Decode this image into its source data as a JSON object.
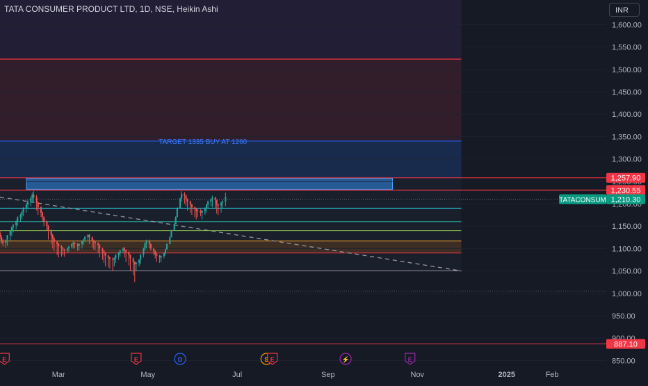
{
  "header": {
    "title": "TATA CONSUMER PRODUCT LTD, 1D, NSE, Heikin Ashi"
  },
  "currency_button": {
    "label": "INR"
  },
  "colors": {
    "background": "#161a25",
    "up_candle": "#26a69a",
    "down_candle": "#ef5350",
    "resistance_line": "#f23645",
    "target_zone": "#1e3a6e",
    "sell_zone": "#4a2030",
    "top_zone": "#2e2345",
    "axis_text": "#b2b5be",
    "current_price_badge": "#089981"
  },
  "chart_data": {
    "type": "candlestick",
    "title": "TATA CONSUMER PRODUCT LTD, 1D, NSE, Heikin Ashi",
    "y_axis": {
      "ylim": [
        835,
        1655
      ],
      "ticks": [
        "1,600.00",
        "1,550.00",
        "1,500.00",
        "1,450.00",
        "1,400.00",
        "1,350.00",
        "1,300.00",
        "1,250.00",
        "1,200.00",
        "1,150.00",
        "1,100.00",
        "1,050.00",
        "1,000.00",
        "950.00",
        "900.00",
        "850.00"
      ]
    },
    "x_axis": {
      "ticks": [
        "Mar",
        "May",
        "Jul",
        "Sep",
        "Nov",
        "2025",
        "Feb"
      ],
      "tick_dates": [
        "2024-03-01",
        "2024-05-01",
        "2024-07-01",
        "2024-09-01",
        "2024-11-01",
        "2025-01-01",
        "2025-02-01"
      ],
      "range": [
        "2024-01-21",
        "2025-03-10"
      ]
    },
    "price_labels": [
      {
        "label": "1,257.90",
        "value": 1257.9,
        "color": "#f23645"
      },
      {
        "label": "1,230.55",
        "value": 1230.55,
        "color": "#f23645"
      },
      {
        "label": "1,210.30",
        "value": 1210.3,
        "color": "#089981"
      },
      {
        "label": "887.10",
        "value": 887.1,
        "color": "#f23645"
      }
    ],
    "current_price": {
      "symbol": "TATACONSUM",
      "value": 1210.3,
      "label": "1,210.30"
    },
    "zones": [
      {
        "name": "top-zone",
        "from": 1525,
        "to": 1655,
        "start": "2024-01-21",
        "end": "2024-12-01",
        "color": "#2e2345"
      },
      {
        "name": "upper-red-zone",
        "from": 1342,
        "to": 1525,
        "start": "2024-01-21",
        "end": "2024-12-01",
        "color": "#4a2030"
      },
      {
        "name": "target-zone",
        "from": 1257.9,
        "to": 1342,
        "start": "2024-01-21",
        "end": "2024-12-01",
        "color": "#1e3a6e"
      },
      {
        "name": "mid-zone",
        "from": 1050,
        "to": 1257.9,
        "start": "2024-01-21",
        "end": "2024-12-01",
        "color": "#1f2533"
      },
      {
        "name": "buy-box",
        "from": 1232,
        "to": 1257,
        "start": "2024-02-08",
        "end": "2024-10-15",
        "color": "#2a6fb8"
      },
      {
        "name": "lower-orange-zone",
        "from": 1090,
        "to": 1117,
        "start": "2024-01-21",
        "end": "2024-12-01",
        "color": "#5a3a20"
      }
    ],
    "lines": [
      {
        "value": 1523,
        "color": "#f23645",
        "start": "2024-01-21",
        "end": "2024-12-01",
        "style": "solid"
      },
      {
        "value": 1340,
        "color": "#2962ff",
        "start": "2024-01-21",
        "end": "2024-12-01",
        "style": "solid",
        "label": "TARGET  1335 BUY AT 1260"
      },
      {
        "value": 1257.9,
        "color": "#f23645",
        "start": "2024-01-21",
        "end": "2025-03-10",
        "style": "solid"
      },
      {
        "value": 1230.55,
        "color": "#f23645",
        "start": "2024-01-21",
        "end": "2025-03-10",
        "style": "solid"
      },
      {
        "value": 1190,
        "color": "#26c6da",
        "start": "2024-01-21",
        "end": "2024-12-01",
        "style": "solid"
      },
      {
        "value": 1160,
        "color": "#26a69a",
        "start": "2024-01-21",
        "end": "2024-12-01",
        "style": "solid"
      },
      {
        "value": 1140,
        "color": "#8bc34a",
        "start": "2024-01-21",
        "end": "2024-12-01",
        "style": "solid"
      },
      {
        "value": 1117,
        "color": "#ffa726",
        "start": "2024-01-21",
        "end": "2024-12-01",
        "style": "solid"
      },
      {
        "value": 1090,
        "color": "#f23645",
        "start": "2024-01-21",
        "end": "2024-12-01",
        "style": "solid"
      },
      {
        "value": 1050,
        "color": "#9598a1",
        "start": "2024-01-21",
        "end": "2024-12-01",
        "style": "solid"
      },
      {
        "value": 887.1,
        "color": "#f23645",
        "start": "2024-01-21",
        "end": "2025-03-10",
        "style": "solid"
      }
    ],
    "trendline": {
      "start": [
        "2024-01-21",
        1215
      ],
      "end": [
        "2024-12-01",
        1050
      ],
      "color": "#9598a1",
      "style": "dashed"
    },
    "event_markers": [
      {
        "date": "2024-01-24",
        "label": "E",
        "color": "#f23645"
      },
      {
        "date": "2024-04-23",
        "label": "E",
        "color": "#f23645"
      },
      {
        "date": "2024-05-23",
        "label": "D",
        "color": "#2962ff"
      },
      {
        "date": "2024-07-21",
        "label": "S",
        "color": "#ff9800"
      },
      {
        "date": "2024-07-25",
        "label": "E",
        "color": "#f23645"
      },
      {
        "date": "2024-09-13",
        "label": "⚡",
        "color": "#9c27b0"
      },
      {
        "date": "2024-10-27",
        "label": "E",
        "color": "#9c27b0"
      }
    ],
    "candles": {
      "start_date": "2024-01-21",
      "interval_days": 1.4,
      "open": [
        1135,
        1125,
        1118,
        1112,
        1120,
        1130,
        1140,
        1148,
        1152,
        1160,
        1170,
        1175,
        1182,
        1190,
        1198,
        1205,
        1212,
        1220,
        1215,
        1202,
        1192,
        1180,
        1170,
        1160,
        1150,
        1140,
        1130,
        1122,
        1115,
        1110,
        1105,
        1100,
        1098,
        1096,
        1100,
        1104,
        1110,
        1113,
        1110,
        1106,
        1110,
        1116,
        1120,
        1126,
        1130,
        1125,
        1118,
        1115,
        1112,
        1108,
        1100,
        1094,
        1090,
        1084,
        1080,
        1077,
        1075,
        1078,
        1085,
        1090,
        1095,
        1100,
        1096,
        1092,
        1085,
        1078,
        1070,
        1065,
        1068,
        1075,
        1086,
        1100,
        1112,
        1118,
        1110,
        1100,
        1094,
        1088,
        1084,
        1080,
        1083,
        1090,
        1098,
        1110,
        1125,
        1140,
        1155,
        1170,
        1190,
        1212,
        1222,
        1218,
        1210,
        1205,
        1198,
        1192,
        1188,
        1184,
        1185,
        1180,
        1184,
        1190,
        1198,
        1205,
        1210,
        1214,
        1208,
        1198,
        1196,
        1202,
        1205
      ],
      "high": [
        1140,
        1130,
        1122,
        1120,
        1128,
        1138,
        1149,
        1155,
        1163,
        1172,
        1178,
        1185,
        1193,
        1202,
        1209,
        1216,
        1225,
        1228,
        1220,
        1205,
        1195,
        1183,
        1172,
        1163,
        1153,
        1143,
        1133,
        1125,
        1118,
        1112,
        1108,
        1103,
        1100,
        1102,
        1106,
        1112,
        1116,
        1114,
        1112,
        1112,
        1118,
        1122,
        1128,
        1132,
        1133,
        1127,
        1120,
        1117,
        1114,
        1110,
        1102,
        1096,
        1092,
        1086,
        1082,
        1080,
        1081,
        1088,
        1093,
        1098,
        1103,
        1104,
        1098,
        1094,
        1087,
        1080,
        1072,
        1070,
        1076,
        1088,
        1102,
        1114,
        1120,
        1120,
        1112,
        1102,
        1096,
        1090,
        1086,
        1085,
        1092,
        1100,
        1112,
        1127,
        1142,
        1157,
        1172,
        1192,
        1214,
        1228,
        1226,
        1220,
        1212,
        1207,
        1200,
        1194,
        1190,
        1188,
        1188,
        1186,
        1192,
        1200,
        1207,
        1212,
        1218,
        1216,
        1210,
        1200,
        1205,
        1208,
        1225
      ],
      "low": [
        1120,
        1110,
        1105,
        1102,
        1106,
        1118,
        1128,
        1136,
        1143,
        1150,
        1160,
        1165,
        1172,
        1180,
        1188,
        1195,
        1203,
        1205,
        1185,
        1175,
        1170,
        1160,
        1150,
        1140,
        1120,
        1110,
        1100,
        1095,
        1085,
        1080,
        1082,
        1085,
        1082,
        1090,
        1093,
        1100,
        1100,
        1100,
        1095,
        1096,
        1100,
        1108,
        1114,
        1118,
        1110,
        1102,
        1098,
        1096,
        1090,
        1080,
        1075,
        1068,
        1060,
        1058,
        1055,
        1050,
        1060,
        1068,
        1075,
        1082,
        1090,
        1080,
        1070,
        1062,
        1050,
        1040,
        1025,
        1050,
        1060,
        1065,
        1080,
        1095,
        1100,
        1100,
        1095,
        1085,
        1078,
        1070,
        1068,
        1070,
        1078,
        1085,
        1100,
        1115,
        1130,
        1145,
        1160,
        1180,
        1200,
        1205,
        1200,
        1195,
        1185,
        1180,
        1175,
        1170,
        1165,
        1170,
        1172,
        1165,
        1175,
        1180,
        1190,
        1195,
        1192,
        1190,
        1178,
        1175,
        1180,
        1190,
        1195
      ],
      "close": [
        1125,
        1118,
        1112,
        1120,
        1130,
        1140,
        1148,
        1152,
        1160,
        1170,
        1175,
        1182,
        1190,
        1198,
        1205,
        1212,
        1220,
        1215,
        1202,
        1192,
        1180,
        1170,
        1160,
        1150,
        1140,
        1130,
        1122,
        1115,
        1110,
        1105,
        1100,
        1098,
        1096,
        1100,
        1104,
        1110,
        1113,
        1110,
        1106,
        1110,
        1116,
        1120,
        1126,
        1130,
        1125,
        1118,
        1115,
        1112,
        1108,
        1100,
        1094,
        1090,
        1084,
        1080,
        1077,
        1075,
        1078,
        1085,
        1090,
        1095,
        1100,
        1096,
        1092,
        1085,
        1078,
        1070,
        1065,
        1068,
        1075,
        1086,
        1100,
        1112,
        1118,
        1110,
        1100,
        1094,
        1088,
        1084,
        1080,
        1083,
        1090,
        1098,
        1110,
        1125,
        1140,
        1155,
        1170,
        1190,
        1212,
        1222,
        1218,
        1210,
        1205,
        1198,
        1192,
        1188,
        1184,
        1185,
        1180,
        1184,
        1190,
        1198,
        1205,
        1210,
        1214,
        1208,
        1198,
        1196,
        1202,
        1205,
        1215
      ]
    }
  }
}
